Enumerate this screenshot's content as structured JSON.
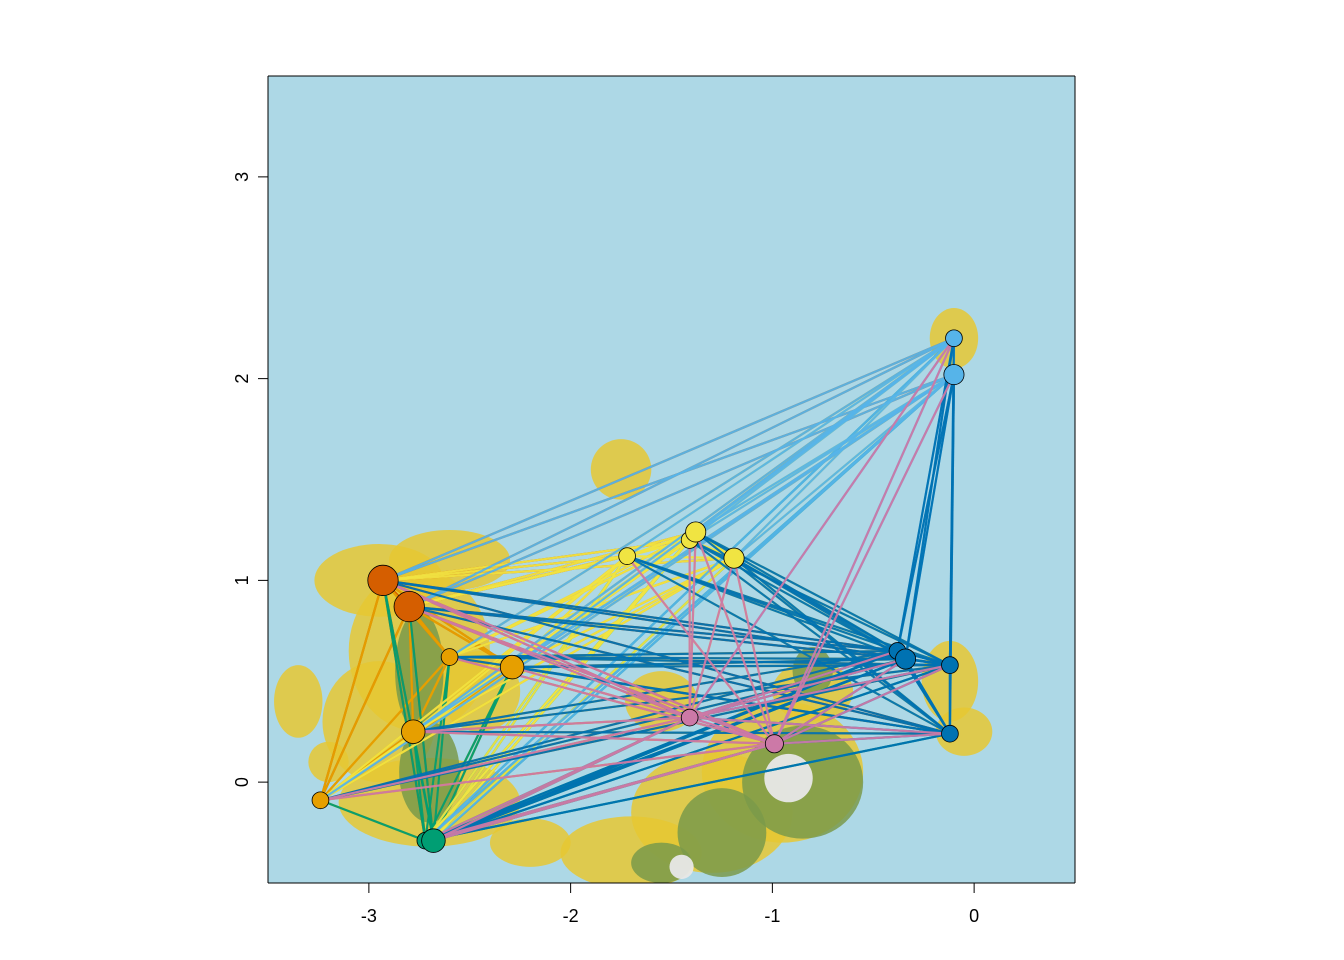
{
  "chart_data": {
    "type": "scatter",
    "title": "",
    "xlabel": "",
    "ylabel": "",
    "xlim": [
      -3.5,
      0.5
    ],
    "ylim": [
      -0.5,
      3.5
    ],
    "x_ticks": [
      "-3",
      "-2",
      "-1",
      "0"
    ],
    "y_ticks": [
      "0",
      "1",
      "2",
      "3"
    ],
    "grid": false,
    "legend": "none",
    "background": {
      "kind": "terrain raster map",
      "sea_color": "#ADD8E6",
      "lowland_color": "#E6C832",
      "midland_color": "#7A9A4A",
      "highland_color": "#E8E8E8"
    },
    "series": [
      {
        "color": "#D55E00",
        "points": [
          {
            "x": -2.93,
            "y": 1.0,
            "size": 3
          },
          {
            "x": -2.8,
            "y": 0.87,
            "size": 3
          }
        ]
      },
      {
        "color": "#E69F00",
        "points": [
          {
            "x": -3.24,
            "y": -0.09,
            "size": 1
          },
          {
            "x": -2.6,
            "y": 0.62,
            "size": 1
          },
          {
            "x": -2.29,
            "y": 0.57,
            "size": 2
          },
          {
            "x": -2.78,
            "y": 0.25,
            "size": 2
          }
        ]
      },
      {
        "color": "#009E73",
        "points": [
          {
            "x": -2.72,
            "y": -0.29,
            "size": 1
          },
          {
            "x": -2.68,
            "y": -0.29,
            "size": 2
          }
        ]
      },
      {
        "color": "#F0E442",
        "points": [
          {
            "x": -1.72,
            "y": 1.12,
            "size": 1
          },
          {
            "x": -1.41,
            "y": 1.2,
            "size": 1
          },
          {
            "x": -1.38,
            "y": 1.24,
            "size": 1.5
          },
          {
            "x": -1.19,
            "y": 1.11,
            "size": 1.5
          }
        ]
      },
      {
        "color": "#56B4E9",
        "points": [
          {
            "x": -0.1,
            "y": 2.2,
            "size": 1
          },
          {
            "x": -0.1,
            "y": 2.02,
            "size": 1.5
          }
        ]
      },
      {
        "color": "#0072B2",
        "points": [
          {
            "x": -0.38,
            "y": 0.65,
            "size": 1
          },
          {
            "x": -0.34,
            "y": 0.61,
            "size": 1.5
          },
          {
            "x": -0.12,
            "y": 0.58,
            "size": 1
          },
          {
            "x": -0.12,
            "y": 0.24,
            "size": 1
          }
        ]
      },
      {
        "color": "#CC79A7",
        "points": [
          {
            "x": -1.41,
            "y": 0.32,
            "size": 1
          },
          {
            "x": -0.99,
            "y": 0.19,
            "size": 1.2
          }
        ]
      }
    ]
  }
}
